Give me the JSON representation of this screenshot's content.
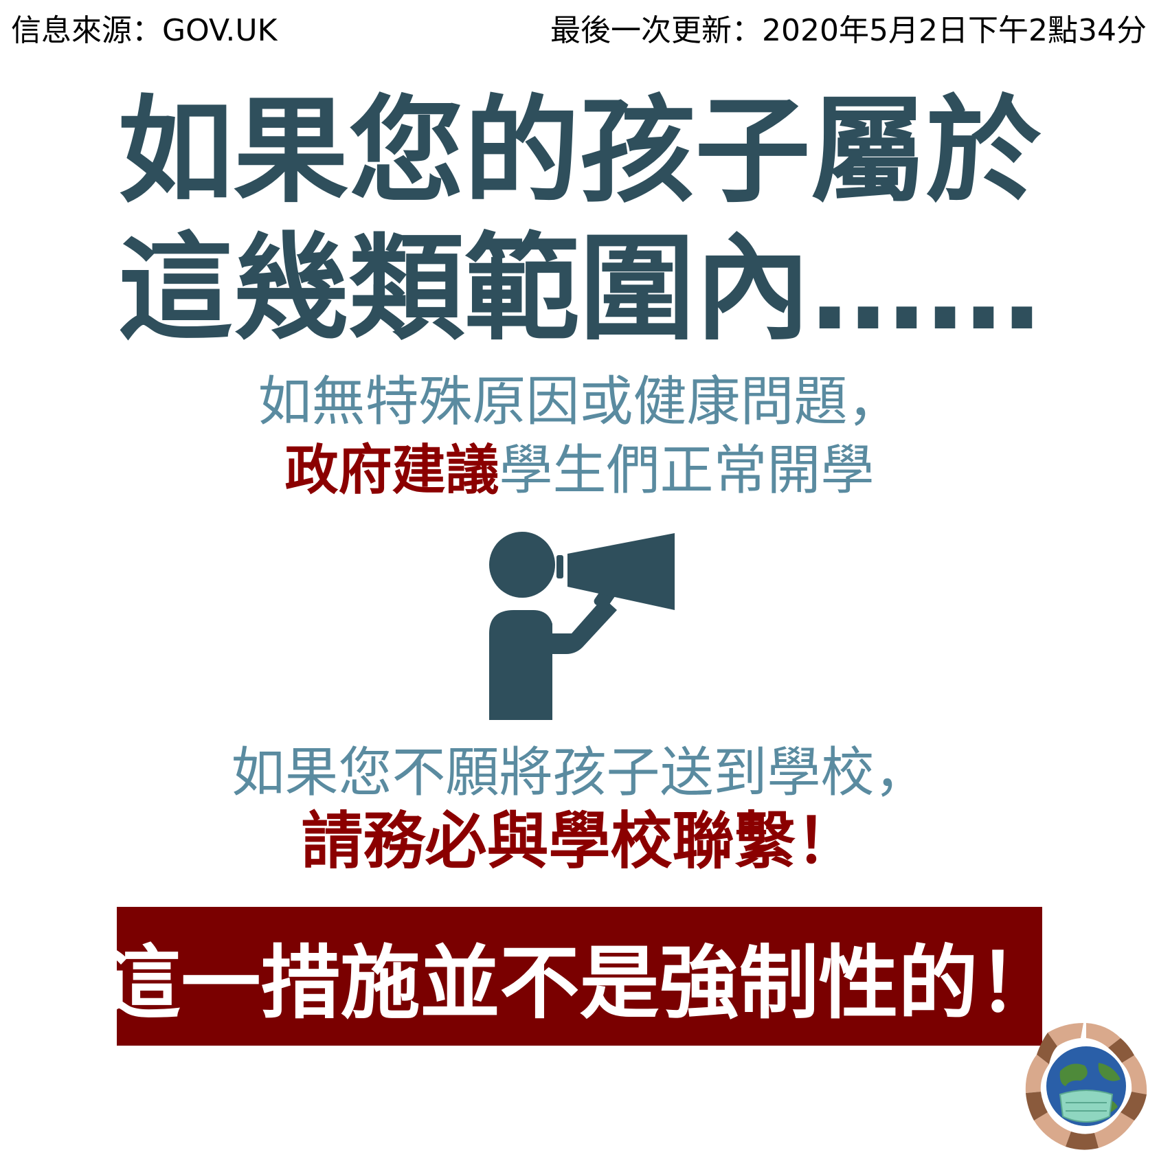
{
  "header": {
    "source": "信息來源：GOV.UK",
    "updated": "最後一次更新：2020年5月2日下午2點34分"
  },
  "title": {
    "line1": "如果您的孩子屬於",
    "line2": "這幾類範圍內……"
  },
  "advice": {
    "line1": "如無特殊原因或健康問題，",
    "line2_emphasis": "政府建議",
    "line2_rest": "學生們正常開學"
  },
  "icon": {
    "name": "person-megaphone-icon",
    "color": "#2f4f5c"
  },
  "contact": {
    "line1": "如果您不願將孩子送到學校，",
    "line2": "請務必與學校聯繫！"
  },
  "banner": {
    "text": "這一措施並不是強制性的！",
    "background": "#7a0000"
  },
  "logo": {
    "name": "globe-mask-hands-logo"
  },
  "colors": {
    "title": "#2f4f5c",
    "subtext": "#5a8ba0",
    "emphasis": "#8b0000"
  }
}
